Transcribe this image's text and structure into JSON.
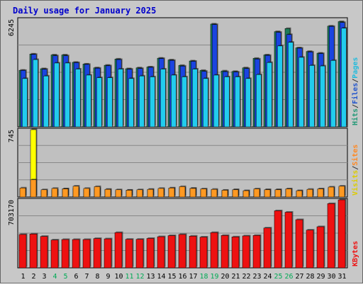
{
  "chart_data": {
    "type": "bar",
    "title": "Daily usage for January 2025",
    "days": [
      "1",
      "2",
      "3",
      "4",
      "5",
      "6",
      "7",
      "8",
      "9",
      "10",
      "11",
      "12",
      "13",
      "14",
      "15",
      "16",
      "17",
      "18",
      "19",
      "20",
      "21",
      "22",
      "23",
      "24",
      "25",
      "26",
      "27",
      "28",
      "29",
      "30",
      "31"
    ],
    "weekend_days": [
      "4",
      "5",
      "11",
      "12",
      "18",
      "19",
      "25",
      "26"
    ],
    "panels": [
      {
        "id": "top",
        "ymax_label": "6245",
        "legend": [
          {
            "text": "Hits",
            "color": "#229977"
          },
          {
            "text": "/",
            "color": "#333333"
          },
          {
            "text": "Files",
            "color": "#2255cc"
          },
          {
            "text": "/",
            "color": "#333333"
          },
          {
            "text": "Pages",
            "color": "#22bbdd"
          }
        ],
        "ymax": 6245,
        "series": [
          {
            "name": "Hits",
            "color": "#1e7b57",
            "values": [
              3280,
              4220,
              3370,
              4170,
              4170,
              3740,
              3640,
              3420,
              3570,
              3930,
              3370,
              3420,
              3470,
              3980,
              3880,
              3560,
              3820,
              3270,
              5960,
              3240,
              3210,
              3420,
              3970,
              4170,
              5520,
              5700,
              4580,
              4370,
              4270,
              5840,
              6100
            ]
          },
          {
            "name": "Files",
            "color": "#1a44e0",
            "values": [
              3270,
              4200,
              3340,
              4120,
              4120,
              3720,
              3620,
              3400,
              3540,
              3900,
              3340,
              3380,
              3450,
              3960,
              3850,
              3520,
              3800,
              3220,
              5930,
              3200,
              3180,
              3380,
              3930,
              4140,
              5480,
              5350,
              4560,
              4340,
              4250,
              5820,
              6050
            ]
          },
          {
            "name": "Pages",
            "color": "#22ccee",
            "values": [
              2800,
              3900,
              2950,
              3700,
              3700,
              3350,
              3000,
              2850,
              2850,
              3350,
              2800,
              2950,
              2900,
              3350,
              3000,
              2900,
              3350,
              2800,
              3000,
              2900,
              2900,
              2800,
              3030,
              3730,
              4690,
              4900,
              4030,
              3560,
              3530,
              3850,
              5720
            ]
          }
        ]
      },
      {
        "id": "middle",
        "ymax_label": "745",
        "legend": [
          {
            "text": "Visits",
            "color": "#ddcc00"
          },
          {
            "text": "/",
            "color": "#333333"
          },
          {
            "text": "Sites",
            "color": "#ff8822"
          }
        ],
        "ymax": 745,
        "series": [
          {
            "name": "Visits",
            "color": "#ffff00",
            "values": [
              90,
              745,
              70,
              75,
              90,
              95,
              80,
              95,
              80,
              70,
              75,
              70,
              80,
              85,
              95,
              100,
              95,
              80,
              75,
              70,
              80,
              65,
              75,
              80,
              80,
              85,
              65,
              75,
              85,
              100,
              110
            ]
          },
          {
            "name": "Sites",
            "color": "#ff9922",
            "values": [
              100,
              190,
              80,
              95,
              90,
              120,
              95,
              115,
              85,
              80,
              75,
              80,
              85,
              95,
              100,
              115,
              95,
              90,
              85,
              75,
              80,
              70,
              90,
              80,
              80,
              90,
              70,
              85,
              90,
              110,
              120
            ]
          }
        ]
      },
      {
        "id": "bottom",
        "ymax_label": "703170",
        "legend": [
          {
            "text": "KBytes",
            "color": "#ee1111"
          }
        ],
        "ymax": 703170,
        "series": [
          {
            "name": "KBytes",
            "color": "#ee1111",
            "values": [
              345000,
              350000,
              325000,
              288000,
              293000,
              293000,
              293000,
              303000,
              300000,
              365000,
              295000,
              295000,
              304000,
              322000,
              333000,
              345000,
              328000,
              318000,
              365000,
              335000,
              320000,
              330000,
              335000,
              412000,
              590000,
              575000,
              498000,
              390000,
              425000,
              664000,
              703170
            ]
          }
        ]
      }
    ],
    "grid": true
  }
}
